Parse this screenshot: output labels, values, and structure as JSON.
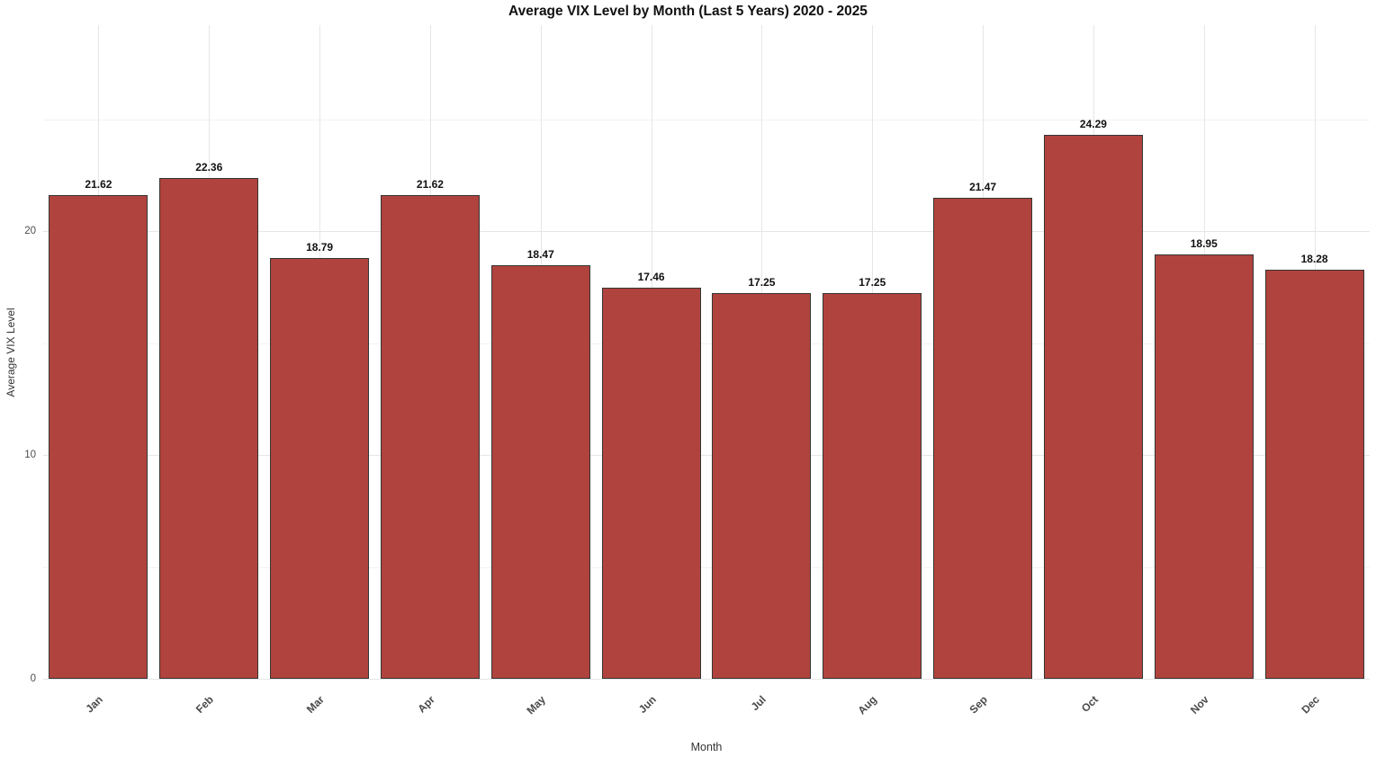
{
  "chart_data": {
    "type": "bar",
    "title": "Average VIX Level by Month (Last 5 Years) 2020 - 2025",
    "xlabel": "Month",
    "ylabel": "Average VIX Level",
    "categories": [
      "Jan",
      "Feb",
      "Mar",
      "Apr",
      "May",
      "Jun",
      "Jul",
      "Aug",
      "Sep",
      "Oct",
      "Nov",
      "Dec"
    ],
    "values": [
      21.62,
      22.36,
      18.79,
      21.62,
      18.47,
      17.46,
      17.25,
      17.25,
      21.47,
      24.29,
      18.95,
      18.28
    ],
    "value_labels": [
      "21.62",
      "22.36",
      "18.79",
      "21.62",
      "18.47",
      "17.46",
      "17.25",
      "17.25",
      "21.47",
      "24.29",
      "18.95",
      "18.28"
    ],
    "ylim": [
      0,
      29.2
    ],
    "yticks": [
      0,
      10,
      20
    ],
    "yticks_minor": [
      5,
      15,
      25
    ],
    "grid": true,
    "legend": "none",
    "bar_color": "#b0433d",
    "bar_edge_color": "#353535",
    "grid_major_color": "#e6e6e6",
    "grid_minor_color": "#f2f2f2",
    "background_color": "#ffffff"
  }
}
